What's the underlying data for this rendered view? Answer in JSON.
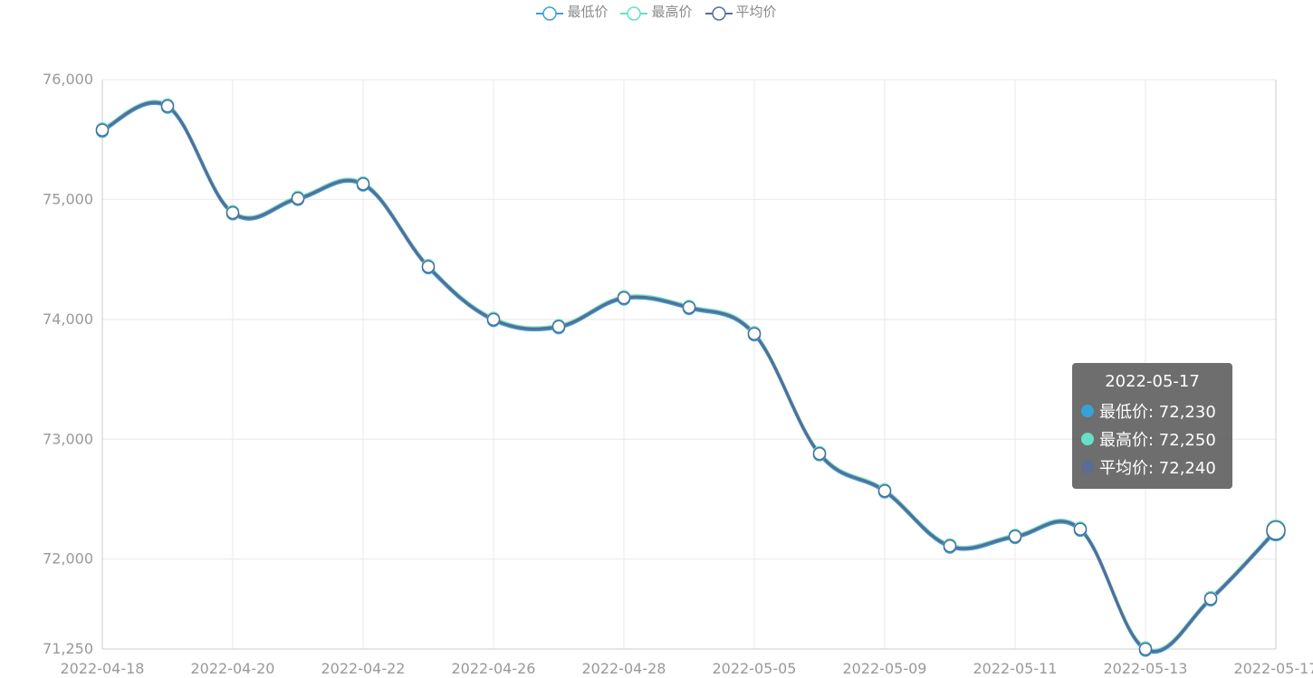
{
  "legend": [
    {
      "label": "最低价",
      "color": "#37a2da"
    },
    {
      "label": "最高价",
      "color": "#67e0c5"
    },
    {
      "label": "平均价",
      "color": "#5a6b96"
    }
  ],
  "tooltip": {
    "title": "2022-05-17",
    "rows": [
      {
        "label": "最低价: 72,230",
        "color": "#37a2da"
      },
      {
        "label": "最高价: 72,250",
        "color": "#67e0c5"
      },
      {
        "label": "平均价: 72,240",
        "color": "#5a6b96"
      }
    ]
  },
  "chart_data": {
    "type": "line",
    "title": "",
    "xlabel": "",
    "ylabel": "",
    "ylim": [
      71250,
      76000
    ],
    "y_ticks": [
      "71,250",
      "72,000",
      "73,000",
      "74,000",
      "75,000",
      "76,000"
    ],
    "y_tick_values": [
      71250,
      72000,
      73000,
      74000,
      75000,
      76000
    ],
    "x_tick_labels": [
      "2022-04-18",
      "2022-04-20",
      "2022-04-22",
      "2022-04-26",
      "2022-04-28",
      "2022-05-05",
      "2022-05-09",
      "2022-05-11",
      "2022-05-13",
      "2022-05-17"
    ],
    "categories": [
      "2022-04-18",
      "2022-04-19",
      "2022-04-20",
      "2022-04-21",
      "2022-04-22",
      "2022-04-25",
      "2022-04-26",
      "2022-04-27",
      "2022-04-28",
      "2022-04-29",
      "2022-05-05",
      "2022-05-06",
      "2022-05-09",
      "2022-05-10",
      "2022-05-11",
      "2022-05-12",
      "2022-05-13",
      "2022-05-16",
      "2022-05-17"
    ],
    "grid": true,
    "legend_position": "top-center",
    "series": [
      {
        "name": "最低价",
        "color": "#37a2da",
        "values": [
          75570,
          75770,
          74880,
          75000,
          75120,
          74430,
          73990,
          73930,
          74170,
          74090,
          73870,
          72870,
          72560,
          72100,
          72180,
          72240,
          71240,
          71660,
          72230
        ]
      },
      {
        "name": "最高价",
        "color": "#67e0c5",
        "values": [
          75590,
          75790,
          74900,
          75020,
          75140,
          74450,
          74010,
          73950,
          74190,
          74110,
          73890,
          72890,
          72580,
          72120,
          72200,
          72260,
          71260,
          71680,
          72250
        ]
      },
      {
        "name": "平均价",
        "color": "#5a6b96",
        "values": [
          75580,
          75780,
          74890,
          75010,
          75130,
          74440,
          74000,
          73940,
          74180,
          74100,
          73880,
          72880,
          72570,
          72110,
          72190,
          72250,
          71250,
          71670,
          72240
        ]
      }
    ]
  }
}
